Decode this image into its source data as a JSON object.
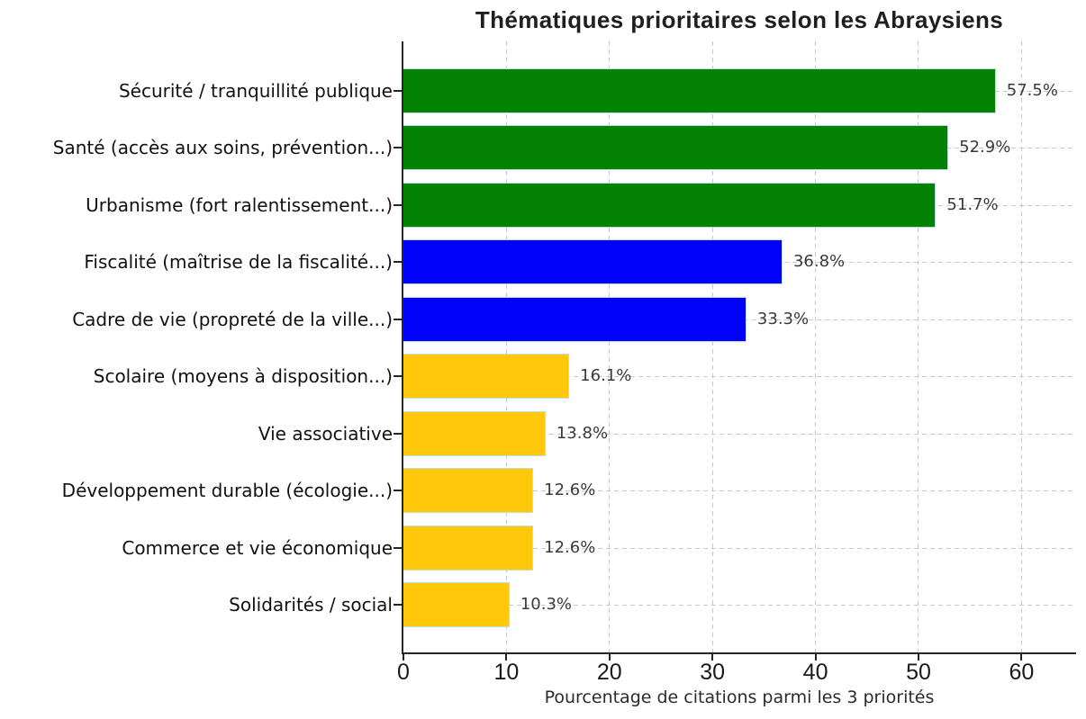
{
  "chart_data": {
    "type": "bar",
    "orientation": "horizontal",
    "title": "Thématiques prioritaires selon les Abraysiens",
    "xlabel": "Pourcentage de citations parmi les 3 priorités",
    "ylabel": "",
    "categories": [
      "Sécurité / tranquillité publique",
      "Santé (accès aux soins, prévention...)",
      "Urbanisme (fort ralentissement...)",
      "Fiscalité (maîtrise de la fiscalité...)",
      "Cadre de vie (propreté de la ville...)",
      "Scolaire (moyens à disposition...)",
      "Vie associative",
      "Développement durable (écologie...)",
      "Commerce et vie économique",
      "Solidarités / social"
    ],
    "values": [
      57.5,
      52.9,
      51.7,
      36.8,
      33.3,
      16.1,
      13.8,
      12.6,
      12.6,
      10.3
    ],
    "value_labels": [
      "57.5%",
      "52.9%",
      "51.7%",
      "36.8%",
      "33.3%",
      "16.1%",
      "13.8%",
      "12.6%",
      "12.6%",
      "10.3%"
    ],
    "bar_colors": [
      "#038203",
      "#038203",
      "#038203",
      "#0202fa",
      "#0202fa",
      "#ffc80a",
      "#ffc80a",
      "#ffc80a",
      "#ffc80a",
      "#ffc80a"
    ],
    "x_ticks": [
      0,
      10,
      20,
      30,
      40,
      50,
      60
    ],
    "xlim": [
      0,
      65.3
    ],
    "grid": "dashed, both axes",
    "legend": "none",
    "colors": {
      "green": "#038203",
      "blue": "#0202fa",
      "gold": "#ffc80a",
      "bar_edge": "#b9dde9",
      "gridline": "#c8c8c8",
      "axis": "#262626",
      "title_text": "#1f1f1f",
      "label_text": "#111111",
      "value_text": "#3a3a3a",
      "background": "#ffffff"
    }
  }
}
